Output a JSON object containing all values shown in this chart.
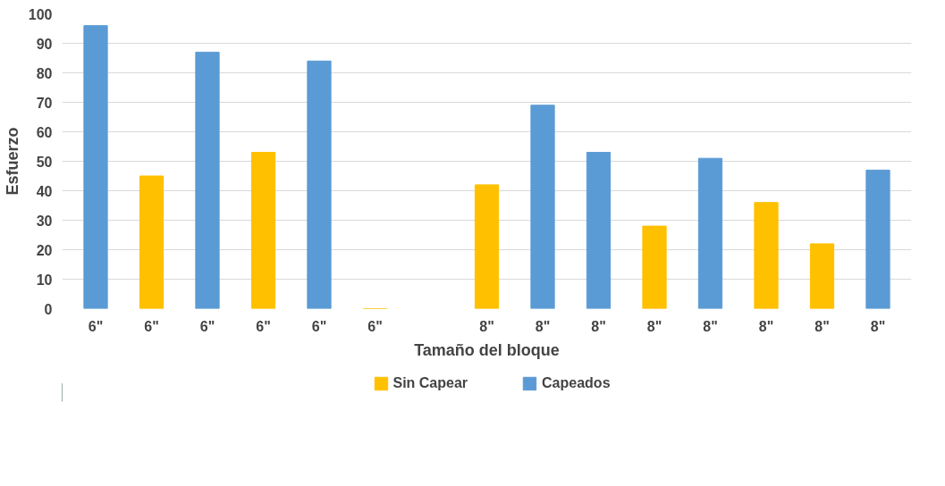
{
  "chart_data": {
    "type": "bar",
    "xlabel": "Tamaño del bloque",
    "ylabel": "Esfuerzo",
    "categories": [
      "6\"",
      "6\"",
      "6\"",
      "6\"",
      "6\"",
      "6\"",
      null,
      "8\"",
      "8\"",
      "8\"",
      "8\"",
      "8\"",
      "8\"",
      "8\"",
      "8\""
    ],
    "series": [
      {
        "name": "Sin Capear",
        "color": "#ffc000",
        "values": [
          null,
          45,
          null,
          53,
          null,
          0,
          null,
          42,
          null,
          null,
          28,
          null,
          36,
          22,
          null
        ]
      },
      {
        "name": "Capeados",
        "color": "#5b9bd5",
        "values": [
          96,
          null,
          87,
          null,
          84,
          null,
          null,
          null,
          69,
          53,
          null,
          51,
          null,
          null,
          47
        ]
      }
    ],
    "ylim": [
      0,
      100
    ],
    "yticks": [
      0,
      10,
      20,
      30,
      40,
      50,
      60,
      70,
      80,
      90,
      100
    ],
    "grid": "y",
    "legend": "bottom"
  }
}
